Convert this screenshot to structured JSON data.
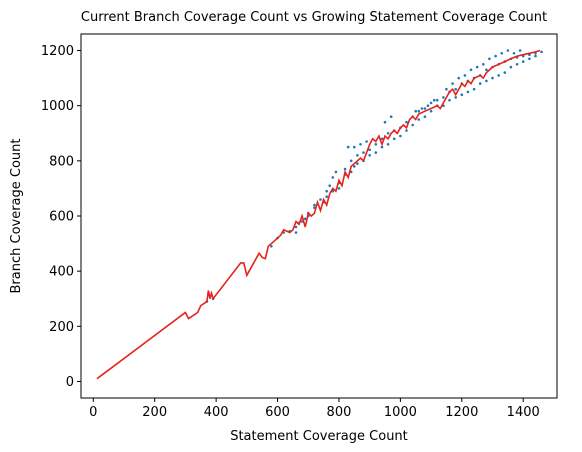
{
  "chart_data": {
    "type": "scatter",
    "title": "Current Branch Coverage Count vs Growing Statement Coverage Count",
    "xlabel": "Statement Coverage Count",
    "ylabel": "Branch Coverage Count",
    "xlim": [
      -40,
      1510
    ],
    "ylim": [
      -60,
      1260
    ],
    "xticks": [
      0,
      200,
      400,
      600,
      800,
      1000,
      1200,
      1400
    ],
    "yticks": [
      0,
      200,
      400,
      600,
      800,
      1000,
      1200
    ],
    "grid": false,
    "series": [
      {
        "type": "scatter",
        "color": "#1f77b4",
        "points": [
          [
            370,
            290
          ],
          [
            390,
            300
          ],
          [
            580,
            490
          ],
          [
            600,
            520
          ],
          [
            620,
            540
          ],
          [
            640,
            545
          ],
          [
            660,
            560
          ],
          [
            670,
            575
          ],
          [
            690,
            590
          ],
          [
            700,
            600
          ],
          [
            720,
            630
          ],
          [
            740,
            660
          ],
          [
            760,
            690
          ],
          [
            770,
            710
          ],
          [
            780,
            740
          ],
          [
            790,
            760
          ],
          [
            800,
            700
          ],
          [
            820,
            770
          ],
          [
            840,
            800
          ],
          [
            850,
            780
          ],
          [
            860,
            820
          ],
          [
            880,
            830
          ],
          [
            900,
            840
          ],
          [
            920,
            860
          ],
          [
            940,
            880
          ],
          [
            960,
            900
          ],
          [
            980,
            910
          ],
          [
            1000,
            920
          ],
          [
            1020,
            940
          ],
          [
            1040,
            960
          ],
          [
            1060,
            980
          ],
          [
            1080,
            990
          ],
          [
            1100,
            1010
          ],
          [
            1120,
            1020
          ],
          [
            1140,
            1030
          ],
          [
            1160,
            1050
          ],
          [
            1180,
            1060
          ],
          [
            1200,
            1080
          ],
          [
            1220,
            1090
          ],
          [
            1240,
            1100
          ],
          [
            1260,
            1110
          ],
          [
            1280,
            1130
          ],
          [
            1300,
            1140
          ],
          [
            1320,
            1150
          ],
          [
            1340,
            1160
          ],
          [
            1360,
            1170
          ],
          [
            1380,
            1175
          ],
          [
            1400,
            1180
          ],
          [
            1420,
            1185
          ],
          [
            1440,
            1190
          ],
          [
            1460,
            1195
          ],
          [
            660,
            540
          ],
          [
            680,
            580
          ],
          [
            700,
            610
          ],
          [
            720,
            640
          ],
          [
            750,
            650
          ],
          [
            760,
            670
          ],
          [
            780,
            690
          ],
          [
            800,
            720
          ],
          [
            820,
            750
          ],
          [
            840,
            760
          ],
          [
            860,
            790
          ],
          [
            880,
            800
          ],
          [
            900,
            820
          ],
          [
            920,
            830
          ],
          [
            940,
            850
          ],
          [
            960,
            860
          ],
          [
            980,
            880
          ],
          [
            1000,
            890
          ],
          [
            1020,
            910
          ],
          [
            1040,
            930
          ],
          [
            1060,
            950
          ],
          [
            1080,
            960
          ],
          [
            1100,
            980
          ],
          [
            1120,
            1000
          ],
          [
            1140,
            1000
          ],
          [
            1160,
            1020
          ],
          [
            1180,
            1030
          ],
          [
            1200,
            1040
          ],
          [
            1220,
            1050
          ],
          [
            1240,
            1060
          ],
          [
            1260,
            1080
          ],
          [
            1280,
            1090
          ],
          [
            1300,
            1100
          ],
          [
            1320,
            1110
          ],
          [
            1340,
            1120
          ],
          [
            1360,
            1140
          ],
          [
            1380,
            1150
          ],
          [
            1400,
            1160
          ],
          [
            1420,
            1170
          ],
          [
            1440,
            1180
          ],
          [
            830,
            850
          ],
          [
            850,
            850
          ],
          [
            870,
            860
          ],
          [
            890,
            870
          ],
          [
            950,
            940
          ],
          [
            970,
            960
          ],
          [
            1050,
            980
          ],
          [
            1070,
            990
          ],
          [
            1090,
            1000
          ],
          [
            1110,
            1020
          ],
          [
            1150,
            1060
          ],
          [
            1170,
            1080
          ],
          [
            1190,
            1100
          ],
          [
            1210,
            1110
          ],
          [
            1230,
            1130
          ],
          [
            1250,
            1140
          ],
          [
            1270,
            1150
          ],
          [
            1290,
            1170
          ],
          [
            1310,
            1180
          ],
          [
            1330,
            1190
          ],
          [
            1350,
            1200
          ],
          [
            1370,
            1190
          ],
          [
            1390,
            1200
          ]
        ]
      },
      {
        "type": "line",
        "color": "#e8211b",
        "points": [
          [
            12,
            10
          ],
          [
            300,
            250
          ],
          [
            310,
            228
          ],
          [
            340,
            250
          ],
          [
            350,
            275
          ],
          [
            370,
            290
          ],
          [
            375,
            330
          ],
          [
            380,
            300
          ],
          [
            385,
            320
          ],
          [
            390,
            300
          ],
          [
            480,
            430
          ],
          [
            490,
            430
          ],
          [
            500,
            385
          ],
          [
            540,
            465
          ],
          [
            550,
            450
          ],
          [
            560,
            445
          ],
          [
            570,
            490
          ],
          [
            590,
            510
          ],
          [
            610,
            530
          ],
          [
            620,
            550
          ],
          [
            640,
            540
          ],
          [
            650,
            550
          ],
          [
            660,
            580
          ],
          [
            670,
            570
          ],
          [
            680,
            600
          ],
          [
            690,
            560
          ],
          [
            700,
            610
          ],
          [
            710,
            600
          ],
          [
            720,
            610
          ],
          [
            730,
            650
          ],
          [
            740,
            620
          ],
          [
            750,
            660
          ],
          [
            760,
            640
          ],
          [
            770,
            680
          ],
          [
            780,
            700
          ],
          [
            790,
            690
          ],
          [
            800,
            730
          ],
          [
            810,
            710
          ],
          [
            820,
            760
          ],
          [
            830,
            740
          ],
          [
            840,
            780
          ],
          [
            850,
            790
          ],
          [
            860,
            800
          ],
          [
            870,
            810
          ],
          [
            880,
            800
          ],
          [
            890,
            830
          ],
          [
            900,
            860
          ],
          [
            910,
            880
          ],
          [
            920,
            870
          ],
          [
            930,
            890
          ],
          [
            940,
            860
          ],
          [
            950,
            890
          ],
          [
            960,
            880
          ],
          [
            970,
            900
          ],
          [
            980,
            910
          ],
          [
            990,
            900
          ],
          [
            1000,
            920
          ],
          [
            1010,
            930
          ],
          [
            1020,
            920
          ],
          [
            1030,
            950
          ],
          [
            1040,
            960
          ],
          [
            1050,
            950
          ],
          [
            1060,
            970
          ],
          [
            1080,
            980
          ],
          [
            1100,
            990
          ],
          [
            1120,
            1000
          ],
          [
            1130,
            990
          ],
          [
            1140,
            1010
          ],
          [
            1150,
            1030
          ],
          [
            1160,
            1050
          ],
          [
            1170,
            1060
          ],
          [
            1180,
            1040
          ],
          [
            1190,
            1060
          ],
          [
            1200,
            1080
          ],
          [
            1210,
            1070
          ],
          [
            1220,
            1090
          ],
          [
            1230,
            1080
          ],
          [
            1240,
            1100
          ],
          [
            1260,
            1110
          ],
          [
            1270,
            1100
          ],
          [
            1280,
            1120
          ],
          [
            1300,
            1140
          ],
          [
            1320,
            1150
          ],
          [
            1340,
            1160
          ],
          [
            1360,
            1170
          ],
          [
            1380,
            1180
          ],
          [
            1400,
            1185
          ],
          [
            1420,
            1190
          ],
          [
            1440,
            1195
          ],
          [
            1455,
            1200
          ]
        ]
      }
    ]
  }
}
